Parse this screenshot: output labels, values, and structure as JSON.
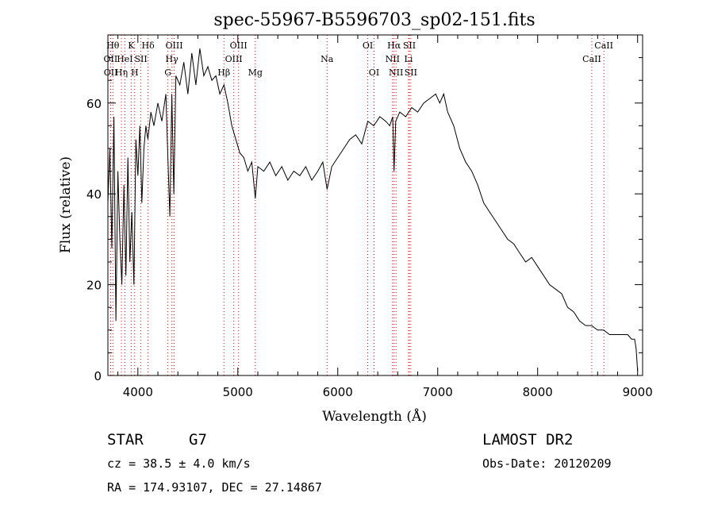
{
  "chart_data": {
    "type": "line",
    "title": "spec-55967-B5596703_sp02-151.fits",
    "xlabel": "Wavelength (Å)",
    "ylabel": "Flux (relative)",
    "xlim": [
      3700,
      9050
    ],
    "ylim": [
      0,
      75
    ],
    "xticks": [
      4000,
      5000,
      6000,
      7000,
      8000,
      9000
    ],
    "yticks": [
      0,
      20,
      40,
      60
    ],
    "line_color": "#000000",
    "marker_color": "#ff0000",
    "series": [
      {
        "x": [
          3700,
          3720,
          3740,
          3760,
          3780,
          3800,
          3820,
          3840,
          3860,
          3880,
          3900,
          3920,
          3940,
          3960,
          3980,
          4000,
          4020,
          4040,
          4060,
          4080,
          4100,
          4130,
          4160,
          4200,
          4240,
          4280,
          4300,
          4320,
          4340,
          4360,
          4380,
          4420,
          4460,
          4500,
          4540,
          4580,
          4620,
          4660,
          4700,
          4740,
          4780,
          4820,
          4861,
          4900,
          4940,
          4980,
          5020,
          5060,
          5100,
          5140,
          5175,
          5200,
          5260,
          5320,
          5380,
          5440,
          5500,
          5560,
          5620,
          5680,
          5740,
          5800,
          5850,
          5893,
          5940,
          6000,
          6060,
          6120,
          6180,
          6240,
          6300,
          6360,
          6420,
          6480,
          6520,
          6550,
          6563,
          6580,
          6620,
          6680,
          6740,
          6800,
          6860,
          6920,
          6980,
          7020,
          7060,
          7100,
          7160,
          7220,
          7280,
          7340,
          7400,
          7460,
          7520,
          7580,
          7640,
          7700,
          7760,
          7820,
          7880,
          7940,
          8000,
          8060,
          8120,
          8180,
          8240,
          8300,
          8360,
          8420,
          8480,
          8540,
          8600,
          8660,
          8720,
          8780,
          8840,
          8900,
          8940,
          8970,
          8985,
          9000
        ],
        "y": [
          38,
          50,
          28,
          57,
          12,
          45,
          30,
          20,
          42,
          22,
          48,
          25,
          36,
          20,
          52,
          44,
          55,
          38,
          50,
          55,
          52,
          58,
          55,
          60,
          56,
          62,
          48,
          35,
          62,
          40,
          66,
          64,
          69,
          62,
          71,
          64,
          72,
          66,
          68,
          65,
          66,
          62,
          64,
          60,
          55,
          52,
          49,
          48,
          45,
          47,
          39,
          46,
          45,
          47,
          44,
          46,
          43,
          45,
          44,
          46,
          43,
          45,
          47,
          41,
          46,
          48,
          50,
          52,
          53,
          51,
          56,
          55,
          57,
          56,
          55,
          57,
          45,
          56,
          58,
          57,
          59,
          58,
          60,
          61,
          62,
          60,
          62,
          58,
          55,
          50,
          47,
          45,
          42,
          38,
          36,
          34,
          32,
          30,
          29,
          27,
          25,
          26,
          24,
          22,
          20,
          19,
          18,
          15,
          14,
          12,
          11,
          11,
          10,
          10,
          9,
          9,
          9,
          9,
          8,
          8,
          6,
          1
        ]
      }
    ],
    "spectral_lines": [
      {
        "wave": 3727,
        "label": "OII",
        "row": 2
      },
      {
        "wave": 3729,
        "label": "OII",
        "row": 3
      },
      {
        "wave": 3750,
        "label": "Hθ",
        "row": 1
      },
      {
        "wave": 3835,
        "label": "Hη",
        "row": 3
      },
      {
        "wave": 3870,
        "label": "HeI",
        "row": 2
      },
      {
        "wave": 3933,
        "label": "K",
        "row": 1
      },
      {
        "wave": 3968,
        "label": "H",
        "row": 3
      },
      {
        "wave": 4030,
        "label": "SII",
        "row": 2
      },
      {
        "wave": 4102,
        "label": "Hδ",
        "row": 1
      },
      {
        "wave": 4300,
        "label": "G",
        "row": 3
      },
      {
        "wave": 4340,
        "label": "Hγ",
        "row": 2
      },
      {
        "wave": 4363,
        "label": "OIII",
        "row": 1
      },
      {
        "wave": 4861,
        "label": "Hβ",
        "row": 3
      },
      {
        "wave": 4959,
        "label": "OIII",
        "row": 2
      },
      {
        "wave": 5007,
        "label": "OIII",
        "row": 1
      },
      {
        "wave": 5175,
        "label": "Mg",
        "row": 3
      },
      {
        "wave": 5893,
        "label": "Na",
        "row": 2
      },
      {
        "wave": 6300,
        "label": "OI",
        "row": 1
      },
      {
        "wave": 6363,
        "label": "OI",
        "row": 3
      },
      {
        "wave": 6548,
        "label": "NII",
        "row": 2
      },
      {
        "wave": 6563,
        "label": "Hα",
        "row": 1
      },
      {
        "wave": 6583,
        "label": "NII",
        "row": 3
      },
      {
        "wave": 6708,
        "label": "Li",
        "row": 2
      },
      {
        "wave": 6716,
        "label": "SII",
        "row": 1
      },
      {
        "wave": 6731,
        "label": "SII",
        "row": 3
      },
      {
        "wave": 8542,
        "label": "CaII",
        "row": 2
      },
      {
        "wave": 8662,
        "label": "CaII",
        "row": 1
      }
    ]
  },
  "info": {
    "object_class": "STAR",
    "subclass": "G7",
    "survey": "LAMOST DR2",
    "redshift": "cz = 38.5 ± 4.0 km/s",
    "obs_date": "Obs-Date: 20120209",
    "coords": "RA = 174.93107, DEC =  27.14867"
  }
}
